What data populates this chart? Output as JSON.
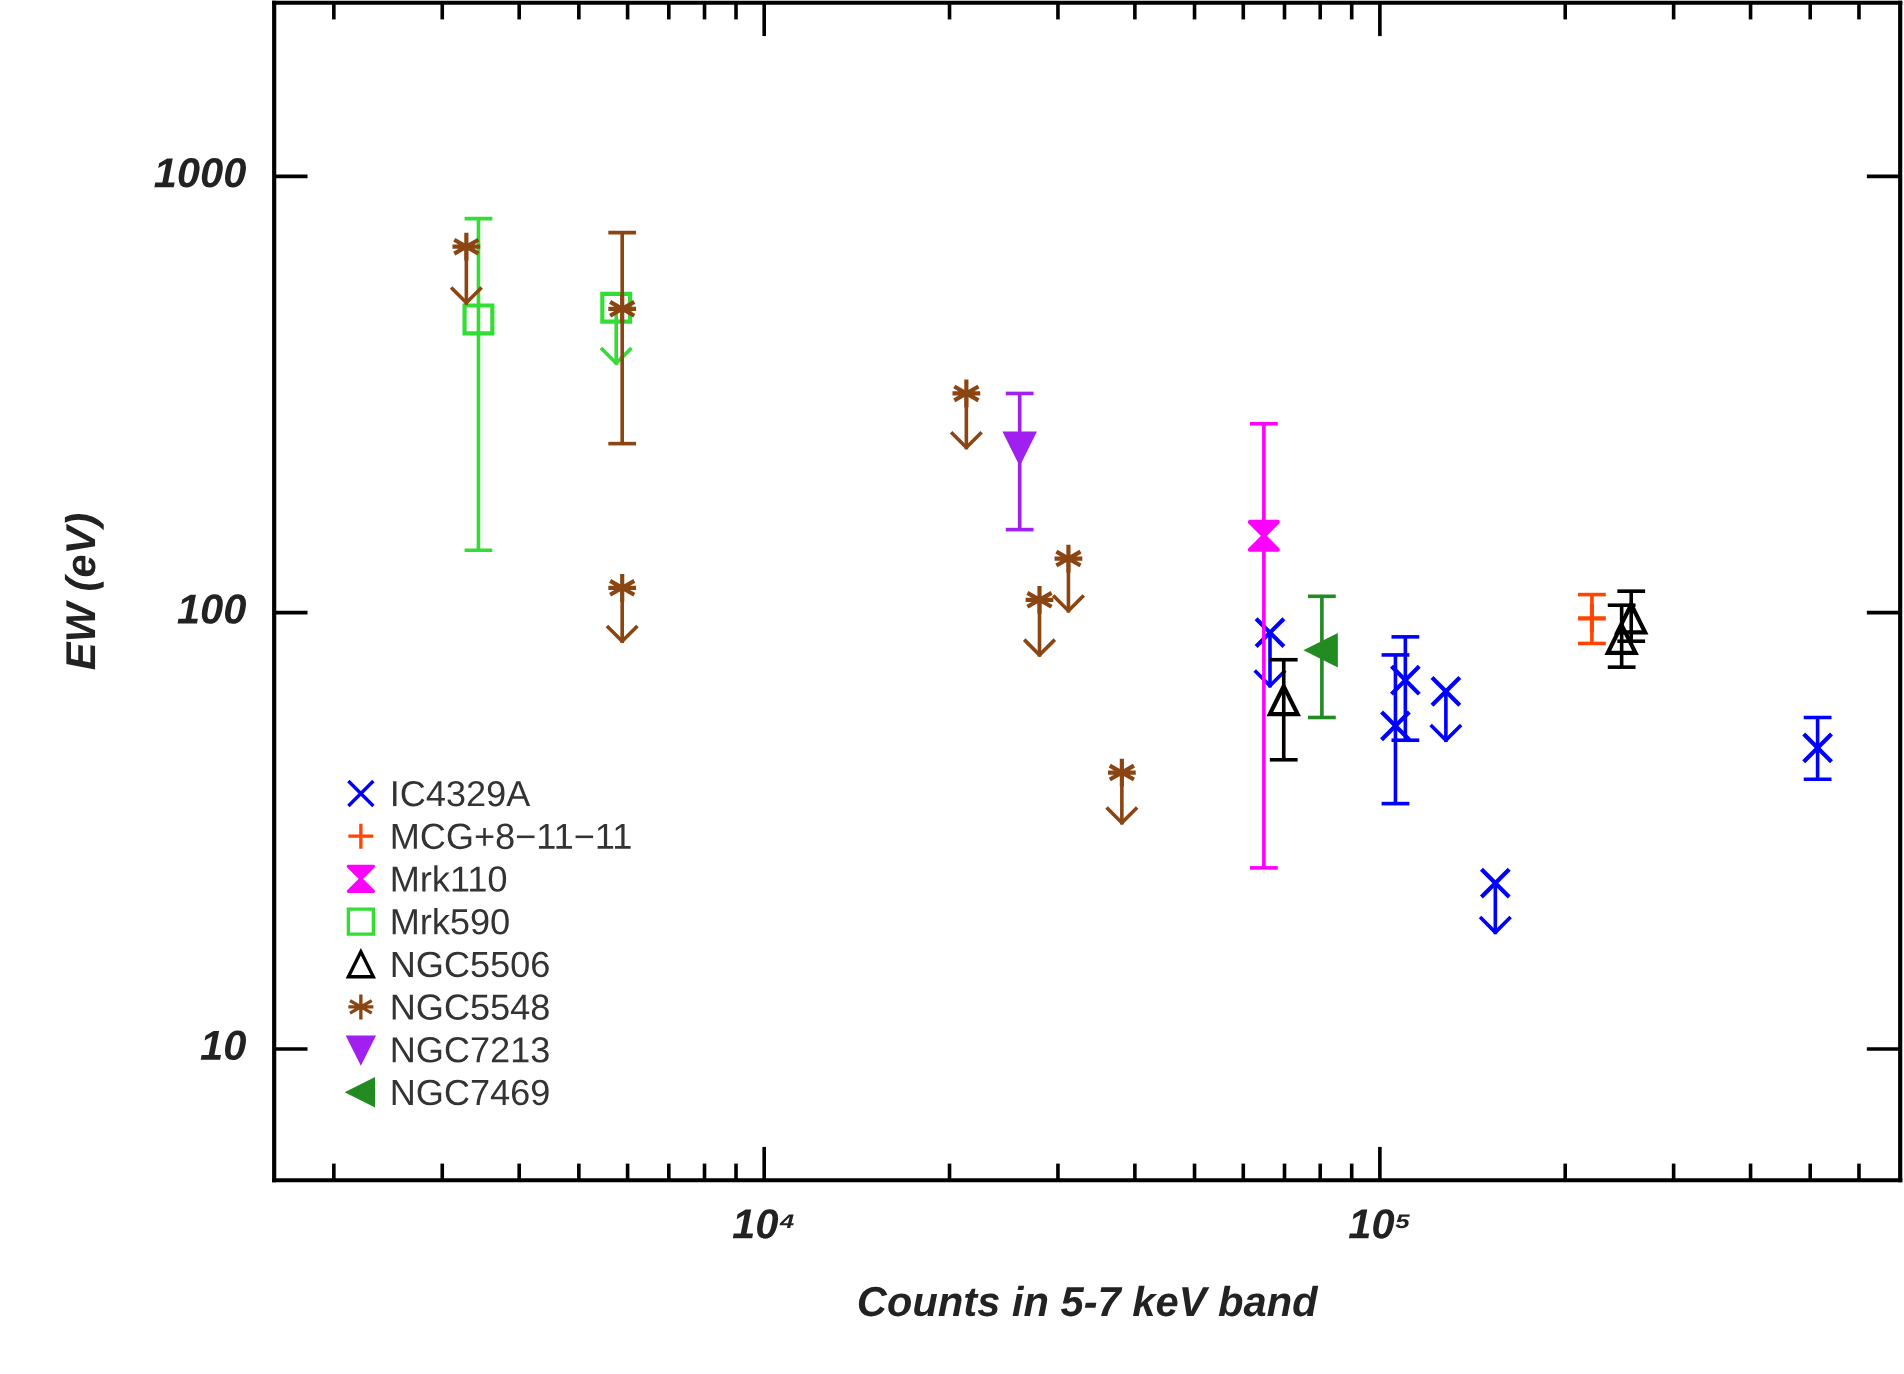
{
  "chart_data": {
    "type": "scatter",
    "xlabel": "Counts in 5-7 keV band",
    "ylabel": "EW (eV)",
    "log": "xy",
    "xlim": [
      1600,
      700000
    ],
    "ylim": [
      5,
      2500
    ],
    "xticks": [
      {
        "value": 2000,
        "label": null
      },
      {
        "value": 3000,
        "label": null
      },
      {
        "value": 4000,
        "label": null
      },
      {
        "value": 5000,
        "label": null
      },
      {
        "value": 6000,
        "label": null
      },
      {
        "value": 7000,
        "label": null
      },
      {
        "value": 8000,
        "label": null
      },
      {
        "value": 9000,
        "label": null
      },
      {
        "value": 10000,
        "label": "10⁴"
      },
      {
        "value": 20000,
        "label": null
      },
      {
        "value": 30000,
        "label": null
      },
      {
        "value": 40000,
        "label": null
      },
      {
        "value": 50000,
        "label": null
      },
      {
        "value": 60000,
        "label": null
      },
      {
        "value": 70000,
        "label": null
      },
      {
        "value": 80000,
        "label": null
      },
      {
        "value": 90000,
        "label": null
      },
      {
        "value": 100000,
        "label": "10⁵"
      },
      {
        "value": 200000,
        "label": null
      },
      {
        "value": 300000,
        "label": null
      },
      {
        "value": 400000,
        "label": null
      },
      {
        "value": 500000,
        "label": null
      },
      {
        "value": 600000,
        "label": null
      }
    ],
    "yticks": [
      10,
      100,
      1000
    ],
    "grid": false,
    "legend": "bottom left",
    "series": [
      {
        "name": "IC4329A",
        "color": "#0000ff",
        "x": [
          66300,
          106000,
          110000,
          128000,
          154000,
          514000
        ],
        "values": [
          90,
          55,
          70,
          66,
          24,
          49
        ],
        "errors": [
          [
            68,
            90
          ],
          [
            36.5,
            80
          ],
          [
            51,
            88
          ],
          [
            51,
            66
          ],
          [
            18.5,
            24
          ],
          [
            41.5,
            57.5
          ]
        ]
      },
      {
        "name": "MCG+8−11−11",
        "color": "#ff4500",
        "x": [
          221000
        ],
        "values": [
          97
        ],
        "errors": [
          [
            85,
            110
          ]
        ]
      },
      {
        "name": "Mrk110",
        "color": "#ff00ff",
        "x": [
          64800
        ],
        "values": [
          150
        ],
        "errors": [
          [
            26,
            271
          ]
        ]
      },
      {
        "name": "Mrk590",
        "color": "#33dd33",
        "x": [
          3435,
          5750
        ],
        "values": [
          470,
          500
        ],
        "errors": [
          [
            139,
            800
          ],
          [
            373,
            500
          ]
        ]
      },
      {
        "name": "NGC5506",
        "color": "#000000",
        "x": [
          69800,
          247000,
          256000
        ],
        "values": [
          63,
          87,
          97
        ],
        "errors": [
          [
            46,
            78
          ],
          [
            75,
            104
          ],
          [
            86,
            112
          ]
        ]
      },
      {
        "name": "NGC5548",
        "color": "#8b4513",
        "x": [
          3283,
          5880,
          5880,
          21300,
          28000,
          31200,
          38100
        ],
        "values": [
          690,
          497,
          114,
          318,
          107,
          133,
          43
        ],
        "errors": [
          [
            513,
            690
          ],
          [
            244,
            743
          ],
          [
            86,
            114
          ],
          [
            239,
            318
          ],
          [
            80,
            107
          ],
          [
            101,
            133
          ],
          [
            33,
            43
          ]
        ]
      },
      {
        "name": "NGC7213",
        "color": "#a020f0",
        "x": [
          26000
        ],
        "values": [
          239
        ],
        "errors": [
          [
            155,
            318
          ]
        ]
      },
      {
        "name": "NGC7469",
        "color": "#228b22",
        "x": [
          80500
        ],
        "values": [
          82
        ],
        "errors": [
          [
            57.5,
            109
          ]
        ]
      }
    ]
  }
}
